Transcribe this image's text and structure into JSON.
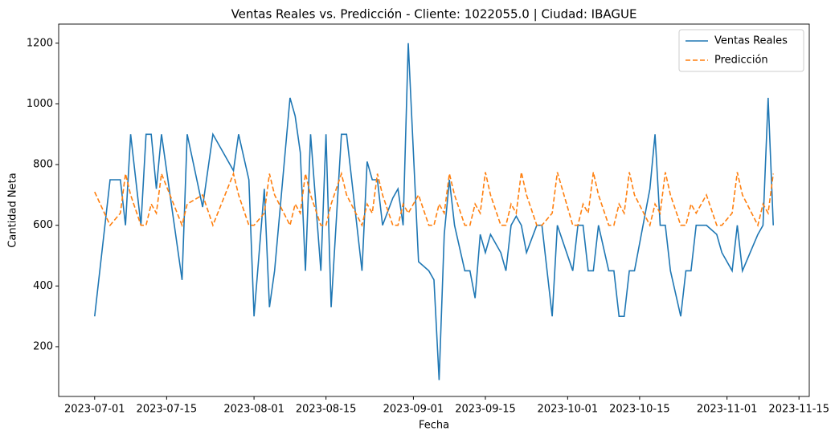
{
  "chart_data": {
    "type": "line",
    "title": "Ventas Reales vs. Predicción - Cliente: 1022055.0 | Ciudad: IBAGUE",
    "x_label": "Fecha",
    "y_label": "Cantidad Neta",
    "x": [
      "2023-07-01",
      "2023-07-04",
      "2023-07-06",
      "2023-07-07",
      "2023-07-08",
      "2023-07-10",
      "2023-07-11",
      "2023-07-12",
      "2023-07-13",
      "2023-07-14",
      "2023-07-18",
      "2023-07-19",
      "2023-07-22",
      "2023-07-24",
      "2023-07-28",
      "2023-07-29",
      "2023-07-31",
      "2023-08-01",
      "2023-08-03",
      "2023-08-04",
      "2023-08-05",
      "2023-08-08",
      "2023-08-09",
      "2023-08-10",
      "2023-08-11",
      "2023-08-12",
      "2023-08-14",
      "2023-08-15",
      "2023-08-16",
      "2023-08-18",
      "2023-08-19",
      "2023-08-22",
      "2023-08-23",
      "2023-08-24",
      "2023-08-25",
      "2023-08-26",
      "2023-08-28",
      "2023-08-29",
      "2023-08-30",
      "2023-08-31",
      "2023-09-02",
      "2023-09-04",
      "2023-09-05",
      "2023-09-06",
      "2023-09-07",
      "2023-09-08",
      "2023-09-09",
      "2023-09-11",
      "2023-09-12",
      "2023-09-13",
      "2023-09-14",
      "2023-09-15",
      "2023-09-16",
      "2023-09-18",
      "2023-09-19",
      "2023-09-20",
      "2023-09-21",
      "2023-09-22",
      "2023-09-23",
      "2023-09-25",
      "2023-09-26",
      "2023-09-28",
      "2023-09-29",
      "2023-10-02",
      "2023-10-03",
      "2023-10-04",
      "2023-10-05",
      "2023-10-06",
      "2023-10-07",
      "2023-10-09",
      "2023-10-10",
      "2023-10-11",
      "2023-10-12",
      "2023-10-13",
      "2023-10-14",
      "2023-10-17",
      "2023-10-18",
      "2023-10-19",
      "2023-10-20",
      "2023-10-21",
      "2023-10-23",
      "2023-10-24",
      "2023-10-25",
      "2023-10-26",
      "2023-10-28",
      "2023-10-30",
      "2023-10-31",
      "2023-11-02",
      "2023-11-03",
      "2023-11-04",
      "2023-11-07",
      "2023-11-08",
      "2023-11-09",
      "2023-11-10"
    ],
    "series": [
      {
        "name": "Ventas Reales",
        "color": "#1f77b4",
        "dash": false,
        "values": [
          300,
          750,
          750,
          600,
          900,
          600,
          900,
          900,
          720,
          900,
          420,
          900,
          660,
          900,
          780,
          900,
          750,
          300,
          720,
          330,
          450,
          1020,
          960,
          840,
          450,
          900,
          450,
          900,
          330,
          900,
          900,
          450,
          810,
          750,
          750,
          600,
          690,
          720,
          600,
          1200,
          480,
          450,
          420,
          90,
          570,
          750,
          600,
          450,
          450,
          360,
          570,
          510,
          570,
          510,
          450,
          600,
          630,
          600,
          510,
          600,
          600,
          300,
          600,
          450,
          600,
          600,
          450,
          450,
          600,
          450,
          450,
          300,
          300,
          450,
          450,
          720,
          900,
          600,
          600,
          450,
          300,
          450,
          450,
          600,
          600,
          570,
          510,
          450,
          600,
          450,
          570,
          600,
          1020,
          600
        ]
      },
      {
        "name": "Predicción",
        "color": "#ff7f0e",
        "dash": true,
        "values": [
          710,
          600,
          640,
          770,
          700,
          600,
          600,
          670,
          640,
          770,
          600,
          670,
          700,
          600,
          770,
          700,
          600,
          600,
          640,
          770,
          700,
          600,
          670,
          640,
          770,
          700,
          600,
          600,
          670,
          770,
          700,
          600,
          670,
          640,
          770,
          700,
          600,
          600,
          670,
          640,
          700,
          600,
          600,
          670,
          640,
          770,
          700,
          600,
          600,
          670,
          640,
          775,
          700,
          600,
          600,
          670,
          640,
          775,
          700,
          600,
          600,
          640,
          775,
          600,
          600,
          670,
          640,
          775,
          700,
          600,
          600,
          670,
          640,
          775,
          700,
          600,
          670,
          640,
          775,
          700,
          600,
          600,
          670,
          640,
          700,
          600,
          600,
          640,
          775,
          700,
          600,
          670,
          640,
          770
        ]
      }
    ],
    "xlim": [
      "2023-06-24",
      "2023-11-17"
    ],
    "xticks": [
      "2023-07-01",
      "2023-07-15",
      "2023-08-01",
      "2023-08-15",
      "2023-09-01",
      "2023-09-15",
      "2023-10-01",
      "2023-10-15",
      "2023-11-01",
      "2023-11-15"
    ],
    "ylim": [
      36,
      1263
    ],
    "yticks": [
      200,
      400,
      600,
      800,
      1000,
      1200
    ],
    "legend": "upper right"
  }
}
